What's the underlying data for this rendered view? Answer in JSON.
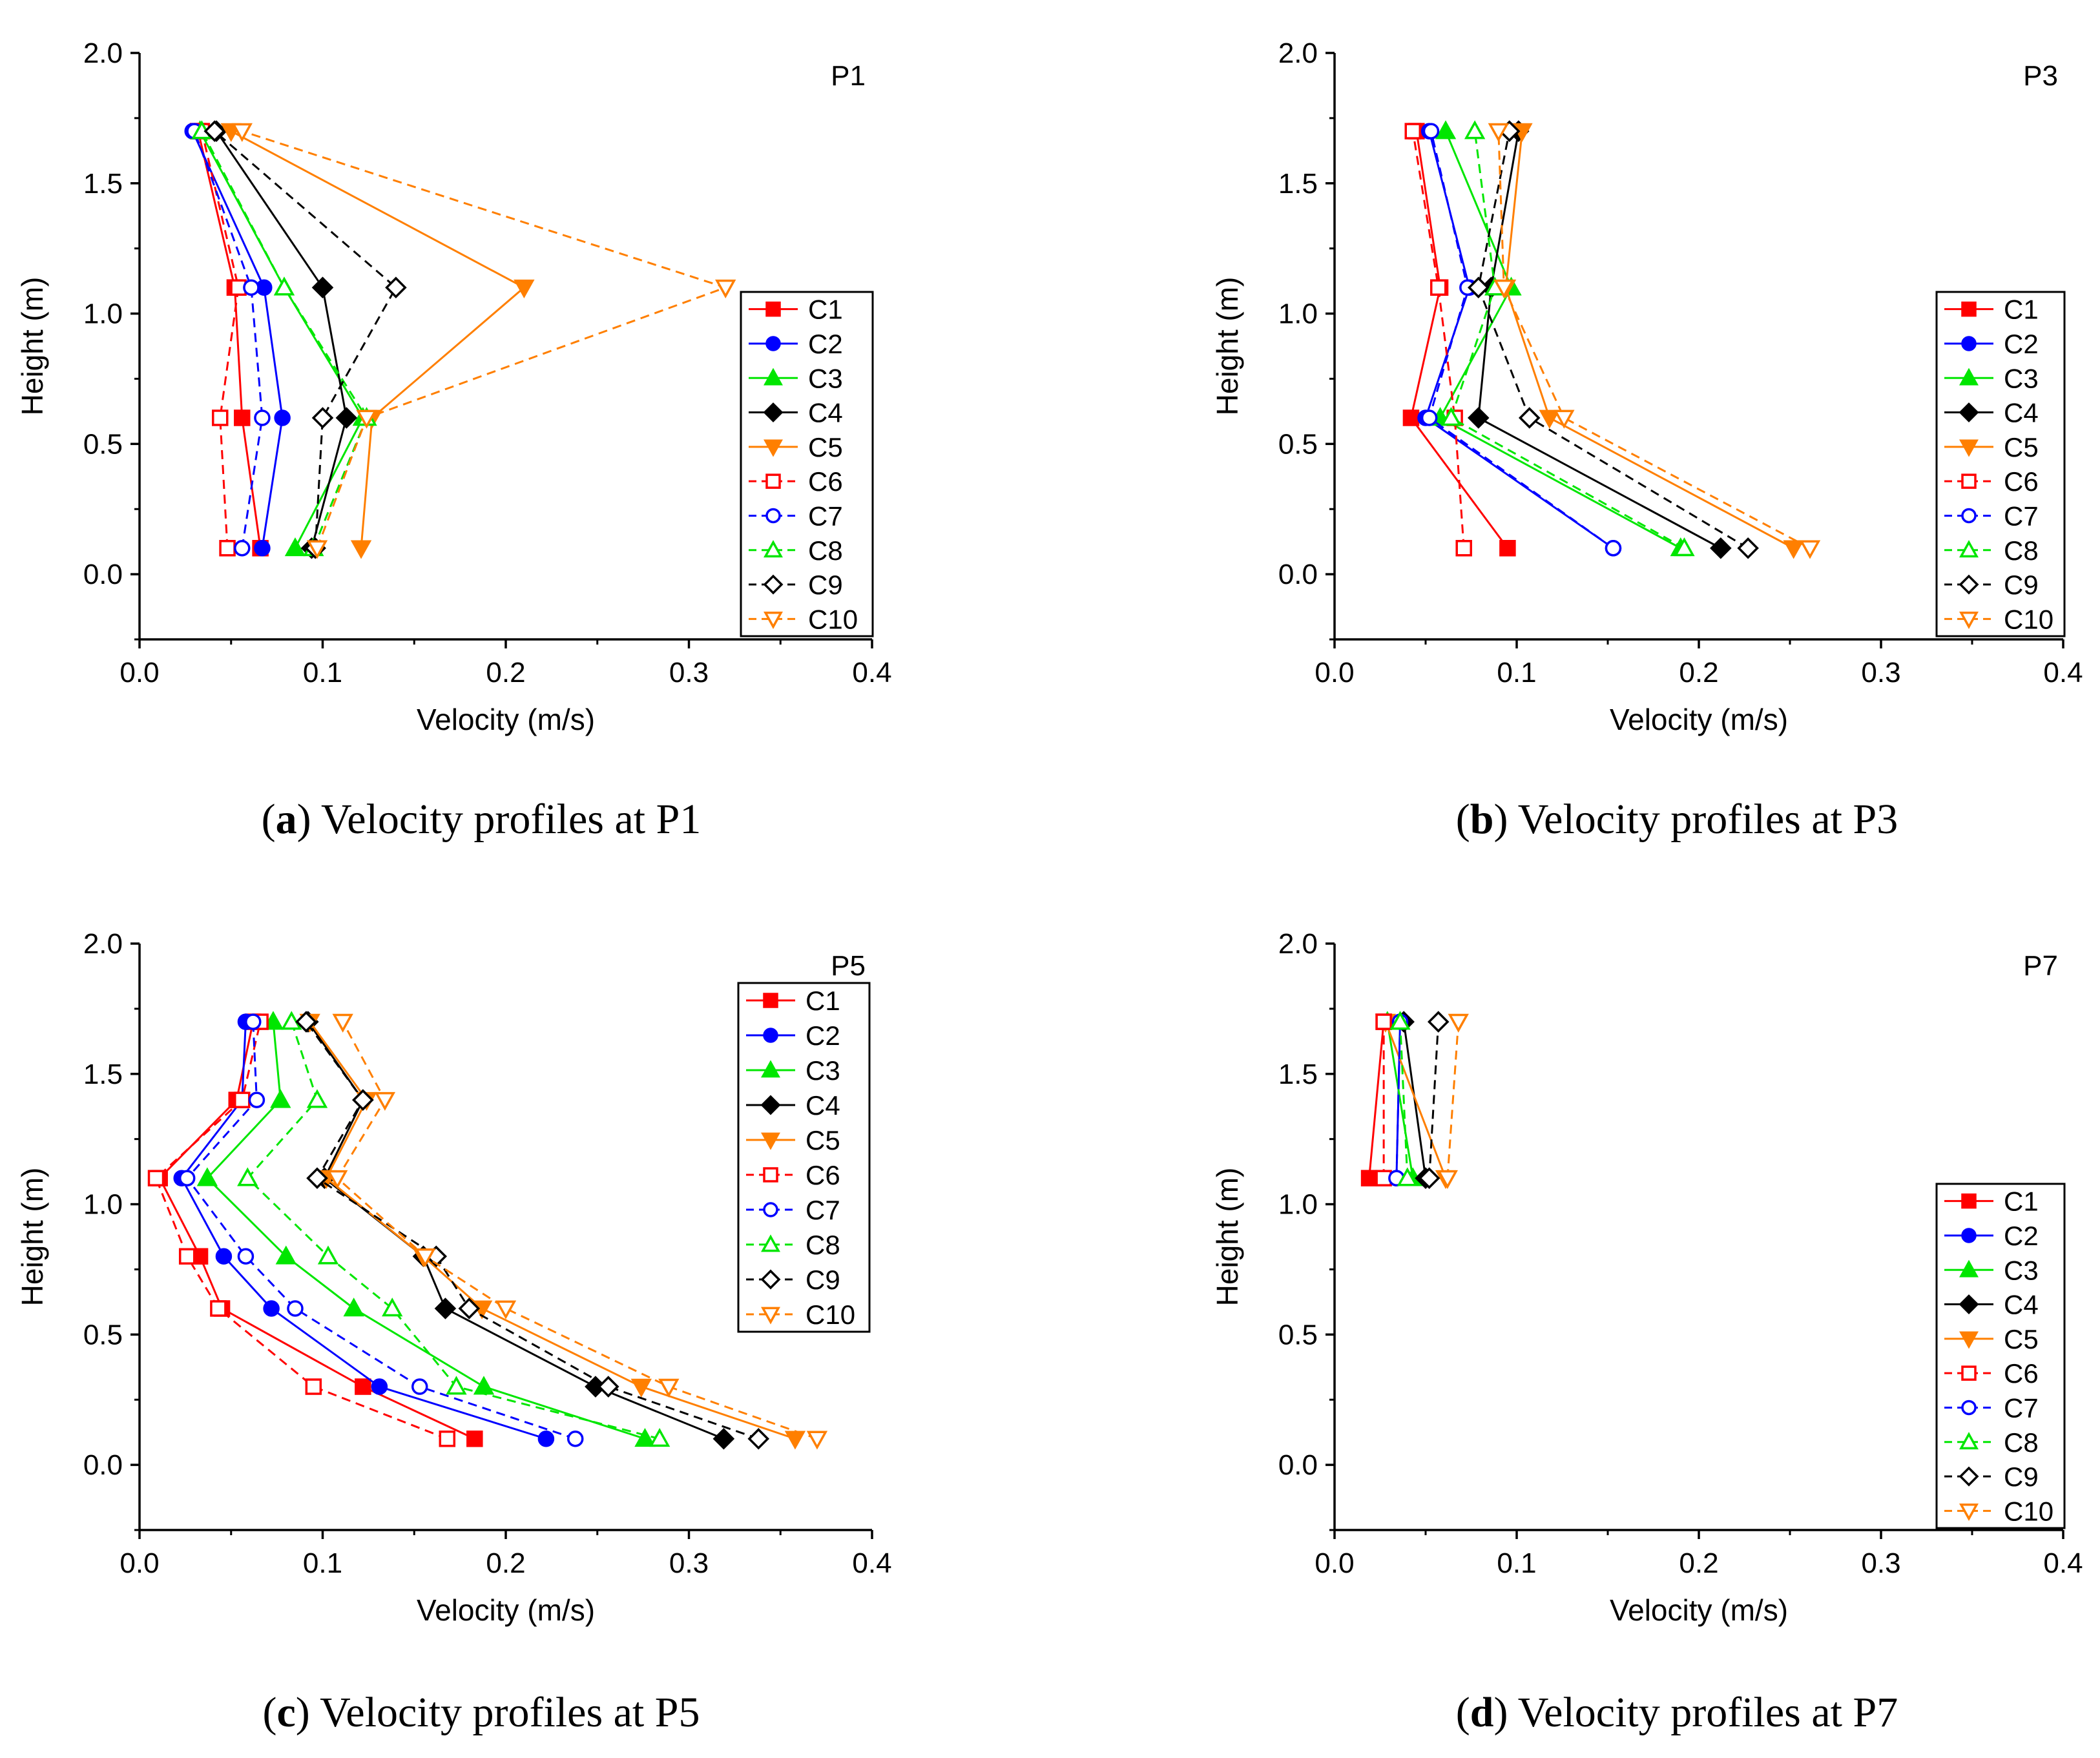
{
  "chart_data": [
    {
      "type": "line",
      "panel_label": "P1",
      "caption": {
        "letter": "a",
        "text": "Velocity profiles at P1"
      },
      "xlabel": "Velocity (m/s)",
      "ylabel": "Height (m)",
      "xlim": [
        0.0,
        0.4
      ],
      "ylim": [
        -0.25,
        2.0
      ],
      "xticks": [
        "0.0",
        "0.1",
        "0.2",
        "0.3",
        "0.4"
      ],
      "yticks": [
        "0.0",
        "0.5",
        "1.0",
        "1.5",
        "2.0"
      ],
      "legend_position": "right",
      "series": [
        {
          "name": "C1",
          "x": [
            0.066,
            0.056,
            0.052,
            0.032
          ],
          "y": [
            0.1,
            0.6,
            1.1,
            1.7
          ]
        },
        {
          "name": "C2",
          "x": [
            0.067,
            0.078,
            0.068,
            0.029
          ],
          "y": [
            0.1,
            0.6,
            1.1,
            1.7
          ]
        },
        {
          "name": "C3",
          "x": [
            0.085,
            0.122,
            0.079,
            0.033
          ],
          "y": [
            0.1,
            0.6,
            1.1,
            1.7
          ]
        },
        {
          "name": "C4",
          "x": [
            0.094,
            0.113,
            0.1,
            0.042
          ],
          "y": [
            0.1,
            0.6,
            1.1,
            1.7
          ]
        },
        {
          "name": "C5",
          "x": [
            0.121,
            0.127,
            0.21,
            0.05
          ],
          "y": [
            0.1,
            0.6,
            1.1,
            1.7
          ]
        },
        {
          "name": "C6",
          "x": [
            0.048,
            0.044,
            0.054,
            0.034
          ],
          "y": [
            0.1,
            0.6,
            1.1,
            1.7
          ]
        },
        {
          "name": "C7",
          "x": [
            0.056,
            0.067,
            0.061,
            0.03
          ],
          "y": [
            0.1,
            0.6,
            1.1,
            1.7
          ]
        },
        {
          "name": "C8",
          "x": [
            0.095,
            0.124,
            0.079,
            0.034
          ],
          "y": [
            0.1,
            0.6,
            1.1,
            1.7
          ]
        },
        {
          "name": "C9",
          "x": [
            0.096,
            0.1,
            0.14,
            0.041
          ],
          "y": [
            0.1,
            0.6,
            1.1,
            1.7
          ]
        },
        {
          "name": "C10",
          "x": [
            0.097,
            0.124,
            0.32,
            0.056
          ],
          "y": [
            0.1,
            0.6,
            1.1,
            1.7
          ]
        }
      ]
    },
    {
      "type": "line",
      "panel_label": "P3",
      "caption": {
        "letter": "b",
        "text": "Velocity profiles at P3"
      },
      "xlabel": "Velocity (m/s)",
      "ylabel": "Height (m)",
      "xlim": [
        0.0,
        0.4
      ],
      "ylim": [
        -0.25,
        2.0
      ],
      "xticks": [
        "0.0",
        "0.1",
        "0.2",
        "0.3",
        "0.4"
      ],
      "yticks": [
        "0.0",
        "0.5",
        "1.0",
        "1.5",
        "2.0"
      ],
      "legend_position": "right",
      "series": [
        {
          "name": "C1",
          "x": [
            0.095,
            0.042,
            0.058,
            0.045
          ],
          "y": [
            0.1,
            0.6,
            1.1,
            1.7
          ]
        },
        {
          "name": "C2",
          "x": [
            0.153,
            0.05,
            0.074,
            0.052
          ],
          "y": [
            0.1,
            0.6,
            1.1,
            1.7
          ]
        },
        {
          "name": "C3",
          "x": [
            0.19,
            0.058,
            0.097,
            0.061
          ],
          "y": [
            0.1,
            0.6,
            1.1,
            1.7
          ]
        },
        {
          "name": "C4",
          "x": [
            0.212,
            0.079,
            0.086,
            0.101
          ],
          "y": [
            0.1,
            0.6,
            1.1,
            1.7
          ]
        },
        {
          "name": "C5",
          "x": [
            0.252,
            0.118,
            0.094,
            0.103
          ],
          "y": [
            0.1,
            0.6,
            1.1,
            1.7
          ]
        },
        {
          "name": "C6",
          "x": [
            0.071,
            0.066,
            0.057,
            0.043
          ],
          "y": [
            0.1,
            0.6,
            1.1,
            1.7
          ]
        },
        {
          "name": "C7",
          "x": [
            0.153,
            0.052,
            0.073,
            0.053
          ],
          "y": [
            0.1,
            0.6,
            1.1,
            1.7
          ]
        },
        {
          "name": "C8",
          "x": [
            0.192,
            0.064,
            0.088,
            0.077
          ],
          "y": [
            0.1,
            0.6,
            1.1,
            1.7
          ]
        },
        {
          "name": "C9",
          "x": [
            0.227,
            0.107,
            0.079,
            0.096
          ],
          "y": [
            0.1,
            0.6,
            1.1,
            1.7
          ]
        },
        {
          "name": "C10",
          "x": [
            0.261,
            0.126,
            0.093,
            0.09
          ],
          "y": [
            0.1,
            0.6,
            1.1,
            1.7
          ]
        }
      ]
    },
    {
      "type": "line",
      "panel_label": "P5",
      "caption": {
        "letter": "c",
        "text": "Velocity profiles at P5"
      },
      "xlabel": "Velocity (m/s)",
      "ylabel": "Height (m)",
      "xlim": [
        0.0,
        0.4
      ],
      "ylim": [
        -0.25,
        2.0
      ],
      "xticks": [
        "0.0",
        "0.1",
        "0.2",
        "0.3",
        "0.4"
      ],
      "yticks": [
        "0.0",
        "0.5",
        "1.0",
        "1.5",
        "2.0"
      ],
      "legend_position": "top-right",
      "series": [
        {
          "name": "C1",
          "x": [
            0.183,
            0.122,
            0.045,
            0.033,
            0.011,
            0.053,
            0.062
          ],
          "y": [
            0.1,
            0.3,
            0.6,
            0.8,
            1.1,
            1.4,
            1.7
          ]
        },
        {
          "name": "C2",
          "x": [
            0.222,
            0.131,
            0.072,
            0.046,
            0.023,
            0.056,
            0.058
          ],
          "y": [
            0.1,
            0.3,
            0.6,
            0.8,
            1.1,
            1.4,
            1.7
          ]
        },
        {
          "name": "C3",
          "x": [
            0.276,
            0.188,
            0.117,
            0.08,
            0.037,
            0.077,
            0.073
          ],
          "y": [
            0.1,
            0.3,
            0.6,
            0.8,
            1.1,
            1.4,
            1.7
          ]
        },
        {
          "name": "C4",
          "x": [
            0.319,
            0.249,
            0.167,
            0.155,
            0.101,
            0.122,
            0.092
          ],
          "y": [
            0.1,
            0.3,
            0.6,
            0.8,
            1.1,
            1.4,
            1.7
          ]
        },
        {
          "name": "C5",
          "x": [
            0.358,
            0.274,
            0.187,
            0.155,
            0.102,
            0.124,
            0.093
          ],
          "y": [
            0.1,
            0.3,
            0.6,
            0.8,
            1.1,
            1.4,
            1.7
          ]
        },
        {
          "name": "C6",
          "x": [
            0.168,
            0.095,
            0.043,
            0.026,
            0.009,
            0.056,
            0.066
          ],
          "y": [
            0.1,
            0.3,
            0.6,
            0.8,
            1.1,
            1.4,
            1.7
          ]
        },
        {
          "name": "C7",
          "x": [
            0.238,
            0.153,
            0.085,
            0.058,
            0.026,
            0.064,
            0.062
          ],
          "y": [
            0.1,
            0.3,
            0.6,
            0.8,
            1.1,
            1.4,
            1.7
          ]
        },
        {
          "name": "C8",
          "x": [
            0.284,
            0.173,
            0.138,
            0.103,
            0.059,
            0.097,
            0.083
          ],
          "y": [
            0.1,
            0.3,
            0.6,
            0.8,
            1.1,
            1.4,
            1.7
          ]
        },
        {
          "name": "C9",
          "x": [
            0.338,
            0.256,
            0.18,
            0.162,
            0.097,
            0.122,
            0.091
          ],
          "y": [
            0.1,
            0.3,
            0.6,
            0.8,
            1.1,
            1.4,
            1.7
          ]
        },
        {
          "name": "C10",
          "x": [
            0.37,
            0.289,
            0.2,
            0.156,
            0.108,
            0.134,
            0.111
          ],
          "y": [
            0.1,
            0.3,
            0.6,
            0.8,
            1.1,
            1.4,
            1.7
          ]
        }
      ]
    },
    {
      "type": "line",
      "panel_label": "P7",
      "caption": {
        "letter": "d",
        "text": "Velocity profiles at P7"
      },
      "xlabel": "Velocity (m/s)",
      "ylabel": "Height (m)",
      "xlim": [
        0.0,
        0.4
      ],
      "ylim": [
        -0.25,
        2.0
      ],
      "xticks": [
        "0.0",
        "0.1",
        "0.2",
        "0.3",
        "0.4"
      ],
      "yticks": [
        "0.0",
        "0.5",
        "1.0",
        "1.5",
        "2.0"
      ],
      "legend_position": "bottom-right",
      "series": [
        {
          "name": "C1",
          "x": [
            0.019,
            0.027
          ],
          "y": [
            1.1,
            1.7
          ]
        },
        {
          "name": "C2",
          "x": [
            0.034,
            0.036
          ],
          "y": [
            1.1,
            1.7
          ]
        },
        {
          "name": "C3",
          "x": [
            0.043,
            0.029
          ],
          "y": [
            1.1,
            1.7
          ]
        },
        {
          "name": "C4",
          "x": [
            0.05,
            0.038
          ],
          "y": [
            1.1,
            1.7
          ]
        },
        {
          "name": "C5",
          "x": [
            0.061,
            0.028
          ],
          "y": [
            1.1,
            1.7
          ]
        },
        {
          "name": "C6",
          "x": [
            0.027,
            0.027
          ],
          "y": [
            1.1,
            1.7
          ]
        },
        {
          "name": "C7",
          "x": [
            0.034,
            0.036
          ],
          "y": [
            1.1,
            1.7
          ]
        },
        {
          "name": "C8",
          "x": [
            0.04,
            0.036
          ],
          "y": [
            1.1,
            1.7
          ]
        },
        {
          "name": "C9",
          "x": [
            0.052,
            0.057
          ],
          "y": [
            1.1,
            1.7
          ]
        },
        {
          "name": "C10",
          "x": [
            0.062,
            0.068
          ],
          "y": [
            1.1,
            1.7
          ]
        }
      ]
    }
  ],
  "series_style": {
    "C1": {
      "color": "#ff0000",
      "marker": "square",
      "filled": true,
      "dash": false
    },
    "C2": {
      "color": "#0000ff",
      "marker": "circle",
      "filled": true,
      "dash": false
    },
    "C3": {
      "color": "#00e600",
      "marker": "triangle-up",
      "filled": true,
      "dash": false
    },
    "C4": {
      "color": "#000000",
      "marker": "diamond",
      "filled": true,
      "dash": false
    },
    "C5": {
      "color": "#ff7f00",
      "marker": "triangle-down",
      "filled": true,
      "dash": false
    },
    "C6": {
      "color": "#ff0000",
      "marker": "square",
      "filled": false,
      "dash": true
    },
    "C7": {
      "color": "#0000ff",
      "marker": "circle",
      "filled": false,
      "dash": true
    },
    "C8": {
      "color": "#00e600",
      "marker": "triangle-up",
      "filled": false,
      "dash": true
    },
    "C9": {
      "color": "#000000",
      "marker": "diamond",
      "filled": false,
      "dash": true
    },
    "C10": {
      "color": "#ff7f00",
      "marker": "triangle-down",
      "filled": false,
      "dash": true
    }
  }
}
